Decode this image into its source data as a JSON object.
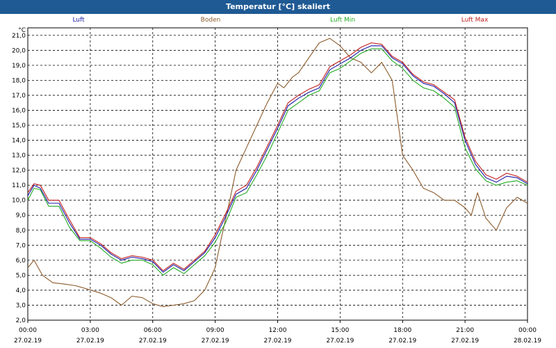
{
  "window": {
    "title": "Temperatur [°C] skaliert"
  },
  "legend": [
    {
      "name": "Luft",
      "color": "#1a1aa8"
    },
    {
      "name": "Boden",
      "color": "#8b5a2b"
    },
    {
      "name": "Luft Min",
      "color": "#22aa22"
    },
    {
      "name": "Luft Max",
      "color": "#c01c1c"
    }
  ],
  "chart_data": {
    "type": "line",
    "title": "Temperatur [°C] skaliert",
    "ylabel": "°C",
    "xlabel": "",
    "ylim": [
      2.0,
      21.5
    ],
    "xlim": [
      0,
      24
    ],
    "grid": true,
    "yticks": [
      "21,0",
      "20,0",
      "19,0",
      "18,0",
      "17,0",
      "16,0",
      "15,0",
      "14,0",
      "13,0",
      "12,0",
      "11,0",
      "10,0",
      "9,0",
      "8,0",
      "7,0",
      "6,0",
      "5,0",
      "4,0",
      "3,0",
      "2,0"
    ],
    "ytick_values": [
      21,
      20,
      19,
      18,
      17,
      16,
      15,
      14,
      13,
      12,
      11,
      10,
      9,
      8,
      7,
      6,
      5,
      4,
      3,
      2
    ],
    "xticks": [
      {
        "time": "00:00",
        "date": "27.02.19",
        "hour": 0
      },
      {
        "time": "03:00",
        "date": "27.02.19",
        "hour": 3
      },
      {
        "time": "06:00",
        "date": "27.02.19",
        "hour": 6
      },
      {
        "time": "09:00",
        "date": "27.02.19",
        "hour": 9
      },
      {
        "time": "12:00",
        "date": "27.02.19",
        "hour": 12
      },
      {
        "time": "15:00",
        "date": "27.02.19",
        "hour": 15
      },
      {
        "time": "18:00",
        "date": "27.02.19",
        "hour": 18
      },
      {
        "time": "21:00",
        "date": "27.02.19",
        "hour": 21
      },
      {
        "time": "00:00",
        "date": "28.02.19",
        "hour": 24
      }
    ],
    "series": [
      {
        "name": "Boden",
        "color": "#8b5a2b",
        "x": [
          0,
          0.3,
          0.7,
          1.2,
          1.8,
          2.3,
          2.8,
          3.5,
          4,
          4.5,
          5,
          5.5,
          6,
          6.5,
          7,
          7.5,
          8,
          8.5,
          9,
          9.3,
          9.7,
          10,
          10.5,
          11,
          11.5,
          12,
          12.3,
          12.7,
          13,
          13.5,
          14,
          14.5,
          15,
          15.5,
          16,
          16.5,
          17,
          17.5,
          18,
          18.5,
          19,
          19.5,
          20,
          20.5,
          21,
          21.3,
          21.6,
          22,
          22.5,
          23,
          23.5,
          24
        ],
        "y": [
          5.5,
          6,
          5,
          4.5,
          4.4,
          4.3,
          4.1,
          3.8,
          3.5,
          3,
          3.6,
          3.5,
          3.1,
          2.9,
          3,
          3.1,
          3.3,
          4,
          5.5,
          7.5,
          10,
          12,
          13.5,
          15,
          16.5,
          17.8,
          17.5,
          18.2,
          18.5,
          19.5,
          20.5,
          20.8,
          20.3,
          19.5,
          19.2,
          18.5,
          19.2,
          18,
          13,
          12,
          10.8,
          10.5,
          10,
          10,
          9.5,
          9,
          10.5,
          8.8,
          8,
          9.5,
          10.2,
          9.8
        ]
      },
      {
        "name": "Luft Min",
        "color": "#22aa22",
        "x": [
          0,
          0.3,
          0.6,
          1,
          1.5,
          2,
          2.5,
          3,
          3.5,
          4,
          4.5,
          5,
          5.5,
          6,
          6.5,
          7,
          7.5,
          8,
          8.5,
          9,
          9.5,
          10,
          10.5,
          11,
          11.5,
          12,
          12.5,
          13,
          13.5,
          14,
          14.5,
          15,
          15.5,
          16,
          16.5,
          17,
          17.5,
          18,
          18.5,
          19,
          19.5,
          20,
          20.5,
          21,
          21.5,
          22,
          22.5,
          23,
          23.5,
          24
        ],
        "y": [
          10,
          10.8,
          10.7,
          9.6,
          9.6,
          8.2,
          7.3,
          7.3,
          6.8,
          6.2,
          5.8,
          6,
          6,
          5.7,
          5,
          5.5,
          5.1,
          5.7,
          6.3,
          7.2,
          8.5,
          10.2,
          10.5,
          11.7,
          13,
          14.5,
          16,
          16.5,
          17,
          17.3,
          18.5,
          18.8,
          19.3,
          19.8,
          20.1,
          20.1,
          19.3,
          18.8,
          18,
          17.5,
          17.3,
          16.8,
          16.2,
          13.5,
          12.1,
          11.3,
          11,
          11.2,
          11.3,
          11.0
        ]
      },
      {
        "name": "Luft",
        "color": "#1a1aa8",
        "x": [
          0,
          0.3,
          0.6,
          1,
          1.5,
          2,
          2.5,
          3,
          3.5,
          4,
          4.5,
          5,
          5.5,
          6,
          6.5,
          7,
          7.5,
          8,
          8.5,
          9,
          9.5,
          10,
          10.5,
          11,
          11.5,
          12,
          12.5,
          13,
          13.5,
          14,
          14.5,
          15,
          15.5,
          16,
          16.5,
          17,
          17.5,
          18,
          18.5,
          19,
          19.5,
          20,
          20.5,
          21,
          21.5,
          22,
          22.5,
          23,
          23.5,
          24
        ],
        "y": [
          10.3,
          11,
          10.8,
          9.8,
          9.8,
          8.5,
          7.4,
          7.4,
          7,
          6.4,
          6,
          6.2,
          6.1,
          5.9,
          5.2,
          5.7,
          5.3,
          5.9,
          6.5,
          7.5,
          8.9,
          10.4,
          10.8,
          12,
          13.4,
          14.8,
          16.3,
          16.8,
          17.2,
          17.5,
          18.7,
          19.1,
          19.5,
          20,
          20.3,
          20.3,
          19.5,
          19.1,
          18.3,
          17.8,
          17.6,
          17.1,
          16.5,
          14,
          12.4,
          11.5,
          11.2,
          11.6,
          11.5,
          11.1
        ]
      },
      {
        "name": "Luft Max",
        "color": "#c01c1c",
        "x": [
          0,
          0.3,
          0.6,
          1,
          1.5,
          2,
          2.5,
          3,
          3.5,
          4,
          4.5,
          5,
          5.5,
          6,
          6.5,
          7,
          7.5,
          8,
          8.5,
          9,
          9.5,
          10,
          10.5,
          11,
          11.5,
          12,
          12.5,
          13,
          13.5,
          14,
          14.5,
          15,
          15.5,
          16,
          16.5,
          17,
          17.5,
          18,
          18.5,
          19,
          19.5,
          20,
          20.5,
          21,
          21.5,
          22,
          22.5,
          23,
          23.5,
          24
        ],
        "y": [
          10.5,
          11.1,
          11,
          10,
          10,
          8.7,
          7.5,
          7.5,
          7.1,
          6.5,
          6.1,
          6.3,
          6.2,
          6,
          5.3,
          5.8,
          5.4,
          6,
          6.6,
          7.7,
          9.1,
          10.6,
          11,
          12.2,
          13.6,
          15,
          16.5,
          17,
          17.4,
          17.7,
          18.9,
          19.3,
          19.7,
          20.2,
          20.5,
          20.4,
          19.6,
          19.2,
          18.4,
          17.9,
          17.7,
          17.2,
          16.7,
          14.2,
          12.6,
          11.7,
          11.4,
          11.8,
          11.6,
          11.2
        ]
      }
    ]
  }
}
